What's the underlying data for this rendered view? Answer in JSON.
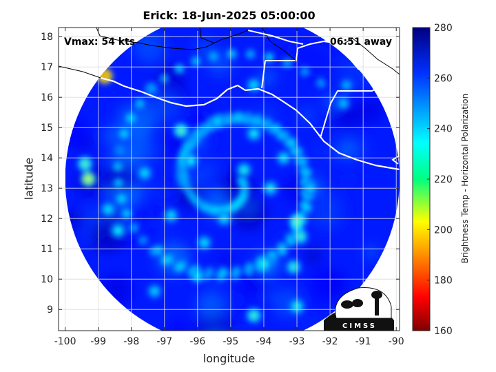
{
  "chart_data": {
    "type": "heatmap",
    "title": "Erick: 18-Jun-2025 05:00:00",
    "xlabel": "longitude",
    "ylabel": "latitude",
    "xlim": [
      -100.2,
      -89.9
    ],
    "ylim": [
      8.3,
      18.3
    ],
    "x_ticks": [
      "-100",
      "-99",
      "-98",
      "-97",
      "-96",
      "-95",
      "-94",
      "-93",
      "-92",
      "-91",
      "-90"
    ],
    "y_ticks": [
      "9",
      "10",
      "11",
      "12",
      "13",
      "14",
      "15",
      "16",
      "17",
      "18"
    ],
    "grid": true,
    "annotations": {
      "vmax": "Vmax: 54 kts",
      "time_away": "06:51 away"
    },
    "colorbar": {
      "label": "Brightness Temp - Horizontal Polarization",
      "range": [
        160,
        280
      ],
      "ticks": [
        "160",
        "180",
        "200",
        "220",
        "240",
        "260",
        "280"
      ],
      "colormap": "jet"
    },
    "swath": {
      "center_lon": -94.95,
      "center_lat": 13.3,
      "radius_deg": 5.05,
      "background_value": 262
    },
    "storm_center": [
      -95.05,
      13.25
    ],
    "warm_features": [
      {
        "lon": -99.3,
        "lat": 13.3,
        "value": 212
      },
      {
        "lon": -99.4,
        "lat": 13.8,
        "value": 225
      },
      {
        "lon": -98.8,
        "lat": 16.7,
        "value": 190
      },
      {
        "lon": -96.5,
        "lat": 14.9,
        "value": 225
      },
      {
        "lon": -93.0,
        "lat": 11.9,
        "value": 222
      },
      {
        "lon": -92.9,
        "lat": 11.4,
        "value": 228
      },
      {
        "lon": -94.6,
        "lat": 13.6,
        "value": 232
      },
      {
        "lon": -93.8,
        "lat": 13.0,
        "value": 234
      },
      {
        "lon": -96.2,
        "lat": 13.9,
        "value": 234
      },
      {
        "lon": -94.3,
        "lat": 14.8,
        "value": 234
      },
      {
        "lon": -95.8,
        "lat": 11.2,
        "value": 236
      },
      {
        "lon": -96.8,
        "lat": 12.1,
        "value": 236
      },
      {
        "lon": -94.0,
        "lat": 10.5,
        "value": 232
      },
      {
        "lon": -93.1,
        "lat": 10.4,
        "value": 230
      },
      {
        "lon": -93.0,
        "lat": 9.1,
        "value": 232
      },
      {
        "lon": -94.3,
        "lat": 8.8,
        "value": 228
      },
      {
        "lon": -98.4,
        "lat": 11.6,
        "value": 234
      },
      {
        "lon": -95.4,
        "lat": 15.2,
        "value": 238
      },
      {
        "lon": -93.4,
        "lat": 14.0,
        "value": 236
      },
      {
        "lon": -92.6,
        "lat": 13.0,
        "value": 238
      },
      {
        "lon": -97.6,
        "lat": 13.5,
        "value": 236
      },
      {
        "lon": -95.2,
        "lat": 12.0,
        "value": 236
      },
      {
        "lon": -96.0,
        "lat": 10.1,
        "value": 236
      },
      {
        "lon": -97.3,
        "lat": 9.6,
        "value": 238
      },
      {
        "lon": -91.6,
        "lat": 15.8,
        "value": 240
      },
      {
        "lon": -91.5,
        "lat": 16.4,
        "value": 242
      },
      {
        "lon": -94.3,
        "lat": 16.4,
        "value": 236
      },
      {
        "lon": -97.4,
        "lat": 16.3,
        "value": 244
      },
      {
        "lon": -98.7,
        "lat": 12.3,
        "value": 236
      }
    ],
    "spiral_bands": [
      {
        "r0": 0.7,
        "turns": 1.4,
        "phase": 0.0,
        "value": 238
      },
      {
        "r0": 0.9,
        "turns": 1.4,
        "phase": 3.1,
        "value": 238
      }
    ]
  },
  "logo": {
    "text": "CIMSS"
  }
}
